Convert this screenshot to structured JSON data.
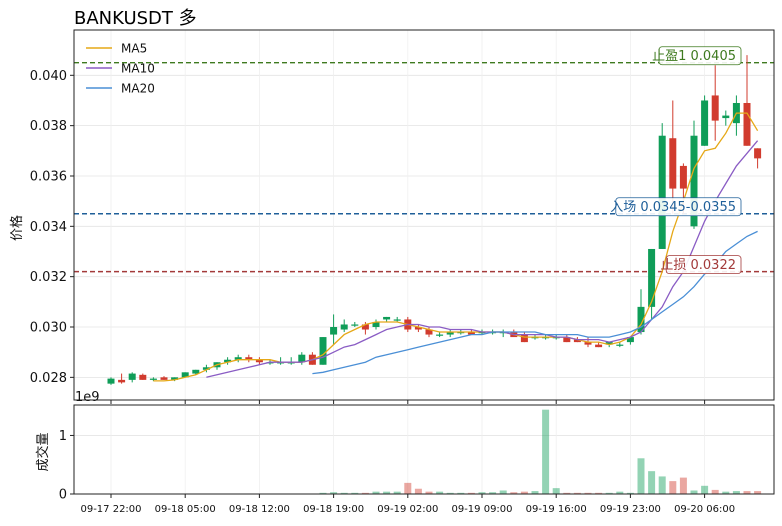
{
  "chart_data": [
    {
      "type": "candlestick",
      "title": "BANKUSDT  多",
      "ylabel": "价格",
      "ylim": [
        0.0271,
        0.0418
      ],
      "yticks": [
        0.028,
        0.03,
        0.032,
        0.034,
        0.036,
        0.038,
        0.04
      ],
      "ytick_labels": [
        "0.028",
        "0.030",
        "0.032",
        "0.034",
        "0.036",
        "0.038",
        "0.040"
      ],
      "grid": true,
      "legend_position": "top-left",
      "levels": [
        {
          "label": "止盈1 0.0405",
          "value": 0.0405,
          "color": "#3e7a1f",
          "style": "dashed"
        },
        {
          "label": "入场 0.0345-0.0355",
          "value": 0.0345,
          "color": "#1f5f99",
          "style": "dashed"
        },
        {
          "label": "止损 0.0322",
          "value": 0.0322,
          "color": "#a33a3a",
          "style": "dashed"
        }
      ],
      "colors": {
        "up": "#0f9d58",
        "down": "#d13b2e",
        "ma5": "#e6a817",
        "ma10": "#8a5cc4",
        "ma20": "#4a8fd6"
      },
      "candles": [
        [
          0.02775,
          0.028,
          0.0277,
          0.02795
        ],
        [
          0.0279,
          0.02815,
          0.02775,
          0.0278
        ],
        [
          0.0279,
          0.0282,
          0.0278,
          0.02815
        ],
        [
          0.0281,
          0.02815,
          0.0279,
          0.0279
        ],
        [
          0.0279,
          0.028,
          0.02785,
          0.02795
        ],
        [
          0.028,
          0.02805,
          0.0279,
          0.0279
        ],
        [
          0.0279,
          0.028,
          0.02785,
          0.028
        ],
        [
          0.028,
          0.0282,
          0.028,
          0.0282
        ],
        [
          0.02815,
          0.0283,
          0.0281,
          0.0283
        ],
        [
          0.0283,
          0.0285,
          0.0282,
          0.0284
        ],
        [
          0.0284,
          0.0286,
          0.0283,
          0.0286
        ],
        [
          0.0286,
          0.0288,
          0.0285,
          0.0287
        ],
        [
          0.0287,
          0.0289,
          0.0286,
          0.0288
        ],
        [
          0.0288,
          0.0289,
          0.0286,
          0.0287
        ],
        [
          0.0287,
          0.0288,
          0.0285,
          0.0286
        ],
        [
          0.0286,
          0.0287,
          0.0285,
          0.0286
        ],
        [
          0.0286,
          0.0288,
          0.0285,
          0.0286
        ],
        [
          0.0286,
          0.0288,
          0.0285,
          0.0286
        ],
        [
          0.0286,
          0.029,
          0.0285,
          0.0289
        ],
        [
          0.0289,
          0.029,
          0.0285,
          0.0285
        ],
        [
          0.0285,
          0.0296,
          0.0285,
          0.0296
        ],
        [
          0.0297,
          0.0305,
          0.0293,
          0.03
        ],
        [
          0.0299,
          0.0303,
          0.0298,
          0.0301
        ],
        [
          0.0301,
          0.0302,
          0.03,
          0.0301
        ],
        [
          0.0301,
          0.0302,
          0.0297,
          0.0299
        ],
        [
          0.03,
          0.0303,
          0.0299,
          0.0302
        ],
        [
          0.0303,
          0.0304,
          0.0302,
          0.0304
        ],
        [
          0.0303,
          0.0304,
          0.0302,
          0.0303
        ],
        [
          0.0303,
          0.0304,
          0.0298,
          0.0299
        ],
        [
          0.03,
          0.0301,
          0.0298,
          0.0299
        ],
        [
          0.0299,
          0.03,
          0.0296,
          0.0297
        ],
        [
          0.0297,
          0.0298,
          0.0296,
          0.0297
        ],
        [
          0.0297,
          0.0299,
          0.0296,
          0.0298
        ],
        [
          0.0298,
          0.0299,
          0.0297,
          0.0298
        ],
        [
          0.0298,
          0.0299,
          0.0297,
          0.0297
        ],
        [
          0.0298,
          0.0299,
          0.0297,
          0.0298
        ],
        [
          0.0298,
          0.0299,
          0.0297,
          0.0298
        ],
        [
          0.0298,
          0.0299,
          0.0296,
          0.0298
        ],
        [
          0.0298,
          0.0299,
          0.0297,
          0.0296
        ],
        [
          0.0297,
          0.0298,
          0.0294,
          0.0294
        ],
        [
          0.0296,
          0.0297,
          0.0295,
          0.0296
        ],
        [
          0.0296,
          0.0297,
          0.0295,
          0.0296
        ],
        [
          0.0296,
          0.0297,
          0.0295,
          0.0296
        ],
        [
          0.0296,
          0.0297,
          0.0294,
          0.0294
        ],
        [
          0.0295,
          0.0296,
          0.0294,
          0.0294
        ],
        [
          0.0294,
          0.0296,
          0.0292,
          0.0293
        ],
        [
          0.0293,
          0.0294,
          0.0292,
          0.0292
        ],
        [
          0.0293,
          0.0294,
          0.0292,
          0.0294
        ],
        [
          0.0293,
          0.0294,
          0.0292,
          0.0293
        ],
        [
          0.0294,
          0.0296,
          0.0293,
          0.0296
        ],
        [
          0.0298,
          0.0315,
          0.0297,
          0.0308
        ],
        [
          0.0308,
          0.0331,
          0.0303,
          0.0331
        ],
        [
          0.0331,
          0.0381,
          0.0331,
          0.0376
        ],
        [
          0.0375,
          0.039,
          0.0345,
          0.0355
        ],
        [
          0.0364,
          0.0365,
          0.0345,
          0.0355
        ],
        [
          0.034,
          0.0382,
          0.0339,
          0.0376
        ],
        [
          0.0372,
          0.0392,
          0.0372,
          0.039
        ],
        [
          0.0392,
          0.0404,
          0.0374,
          0.0382
        ],
        [
          0.0383,
          0.0386,
          0.038,
          0.0384
        ],
        [
          0.0381,
          0.0392,
          0.0376,
          0.0389
        ],
        [
          0.0389,
          0.0408,
          0.0372,
          0.0372
        ],
        [
          0.0371,
          0.0371,
          0.0363,
          0.0367
        ]
      ],
      "ma_series": [
        {
          "name": "MA5",
          "values": [
            null,
            null,
            null,
            null,
            0.02786,
            0.02786,
            0.0279,
            0.028,
            0.0281,
            0.0283,
            0.0285,
            0.0286,
            0.0287,
            0.0287,
            0.0287,
            0.0287,
            0.0286,
            0.0286,
            0.0286,
            0.0287,
            0.0289,
            0.0293,
            0.0297,
            0.0299,
            0.0301,
            0.0302,
            0.0302,
            0.0302,
            0.0301,
            0.03,
            0.0299,
            0.0298,
            0.0298,
            0.0298,
            0.0298,
            0.0298,
            0.0298,
            0.0298,
            0.0297,
            0.0296,
            0.0296,
            0.0296,
            0.0296,
            0.0296,
            0.0295,
            0.0294,
            0.0294,
            0.0293,
            0.0294,
            0.0296,
            0.0301,
            0.031,
            0.0322,
            0.0338,
            0.035,
            0.0363,
            0.037,
            0.0371,
            0.0377,
            0.0385,
            0.0385,
            0.0378
          ]
        },
        {
          "name": "MA10",
          "values": [
            null,
            null,
            null,
            null,
            null,
            null,
            null,
            null,
            null,
            0.028,
            0.0281,
            0.0282,
            0.0283,
            0.0284,
            0.0285,
            0.0286,
            0.0286,
            0.0286,
            0.0286,
            0.0287,
            0.0288,
            0.029,
            0.0292,
            0.0293,
            0.0295,
            0.0297,
            0.0299,
            0.03,
            0.0301,
            0.0301,
            0.03,
            0.03,
            0.0299,
            0.0299,
            0.0299,
            0.0298,
            0.0298,
            0.0298,
            0.0297,
            0.0297,
            0.0297,
            0.0297,
            0.0296,
            0.0296,
            0.0295,
            0.0295,
            0.0295,
            0.0294,
            0.0295,
            0.0296,
            0.0298,
            0.0303,
            0.0308,
            0.0316,
            0.0322,
            0.0332,
            0.0342,
            0.035,
            0.0357,
            0.0364,
            0.0369,
            0.0374
          ]
        },
        {
          "name": "MA20",
          "values": [
            null,
            null,
            null,
            null,
            null,
            null,
            null,
            null,
            null,
            null,
            null,
            null,
            null,
            null,
            null,
            null,
            null,
            null,
            null,
            0.02815,
            0.0282,
            0.0283,
            0.0284,
            0.0285,
            0.0286,
            0.0288,
            0.0289,
            0.029,
            0.0291,
            0.0292,
            0.0293,
            0.0294,
            0.0295,
            0.0296,
            0.0297,
            0.0297,
            0.0298,
            0.0298,
            0.0298,
            0.0298,
            0.0298,
            0.0297,
            0.0297,
            0.0297,
            0.0297,
            0.0296,
            0.0296,
            0.0296,
            0.0297,
            0.0298,
            0.03,
            0.0303,
            0.0306,
            0.0309,
            0.0312,
            0.0316,
            0.0321,
            0.0325,
            0.033,
            0.0333,
            0.0336,
            0.0338
          ]
        }
      ]
    },
    {
      "type": "bar",
      "ylabel": "成交量",
      "scale_label": "1e9",
      "ylim": [
        0,
        1.52
      ],
      "yticks": [
        0,
        1
      ],
      "ytick_labels": [
        "0",
        "1"
      ],
      "grid": true,
      "x_tick_labels": [
        "09-17 22:00",
        "09-18 05:00",
        "09-18 12:00",
        "09-18 19:00",
        "09-19 02:00",
        "09-19 09:00",
        "09-19 16:00",
        "09-19 23:00",
        "09-20 06:00"
      ],
      "x_tick_indices": [
        0,
        7,
        14,
        21,
        28,
        35,
        42,
        49,
        56
      ],
      "values": [
        0.005,
        0.004,
        0.004,
        0.004,
        0.004,
        0.003,
        0.003,
        0.004,
        0.004,
        0.004,
        0.004,
        0.004,
        0.004,
        0.004,
        0.003,
        0.003,
        0.003,
        0.004,
        0.004,
        0.004,
        0.02,
        0.03,
        0.02,
        0.02,
        0.02,
        0.04,
        0.04,
        0.04,
        0.19,
        0.09,
        0.04,
        0.04,
        0.02,
        0.02,
        0.02,
        0.03,
        0.03,
        0.06,
        0.03,
        0.04,
        0.05,
        1.44,
        0.1,
        0.02,
        0.02,
        0.02,
        0.02,
        0.02,
        0.04,
        0.02,
        0.61,
        0.39,
        0.3,
        0.22,
        0.28,
        0.06,
        0.14,
        0.07,
        0.04,
        0.05,
        0.05,
        0.05
      ]
    }
  ],
  "legend": [
    {
      "label": "MA5",
      "color": "#e6a817"
    },
    {
      "label": "MA10",
      "color": "#8a5cc4"
    },
    {
      "label": "MA20",
      "color": "#4a8fd6"
    }
  ]
}
